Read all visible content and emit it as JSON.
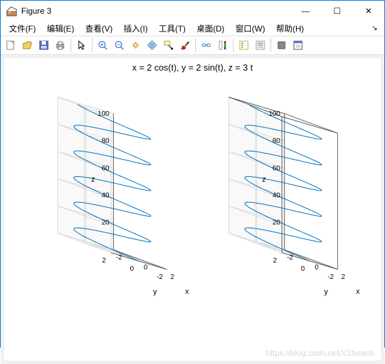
{
  "window": {
    "title": "Figure 3",
    "minimize_label": "—",
    "maximize_label": "☐",
    "close_label": "✕"
  },
  "menus": [
    {
      "label": "文件(F)"
    },
    {
      "label": "编辑(E)"
    },
    {
      "label": "查看(V)"
    },
    {
      "label": "插入(I)"
    },
    {
      "label": "工具(T)"
    },
    {
      "label": "桌面(D)"
    },
    {
      "label": "窗口(W)"
    },
    {
      "label": "帮助(H)"
    }
  ],
  "chart": {
    "title": "x = 2 cos(t), y = 2 sin(t), z = 3 t",
    "type": "3d-line-parametric",
    "background": "#ffffff",
    "panel_face": "#f9f9f9",
    "grid_color": "#d9d9d9",
    "axis_color": "#404040",
    "line_color": "#0072bd",
    "line_width": 1,
    "label_fontsize": 11,
    "tick_fontsize": 10,
    "axes": {
      "x": {
        "label": "x",
        "min": -2,
        "max": 2,
        "ticks": [
          -2,
          0,
          2
        ]
      },
      "y": {
        "label": "y",
        "min": -2,
        "max": 2,
        "ticks": [
          -2,
          0,
          2
        ]
      },
      "z": {
        "label": "z",
        "min": 0,
        "max": 100,
        "ticks": [
          20,
          40,
          60,
          80,
          100
        ]
      }
    },
    "parametric": {
      "x": "2*cos(t)",
      "y": "2*sin(t)",
      "z": "3*t",
      "t_range": [
        0,
        33.3
      ],
      "samples": 400
    },
    "subplots": [
      {
        "box": false
      },
      {
        "box": true
      }
    ]
  },
  "watermark": "https://blog.csdn.net/V2beach"
}
